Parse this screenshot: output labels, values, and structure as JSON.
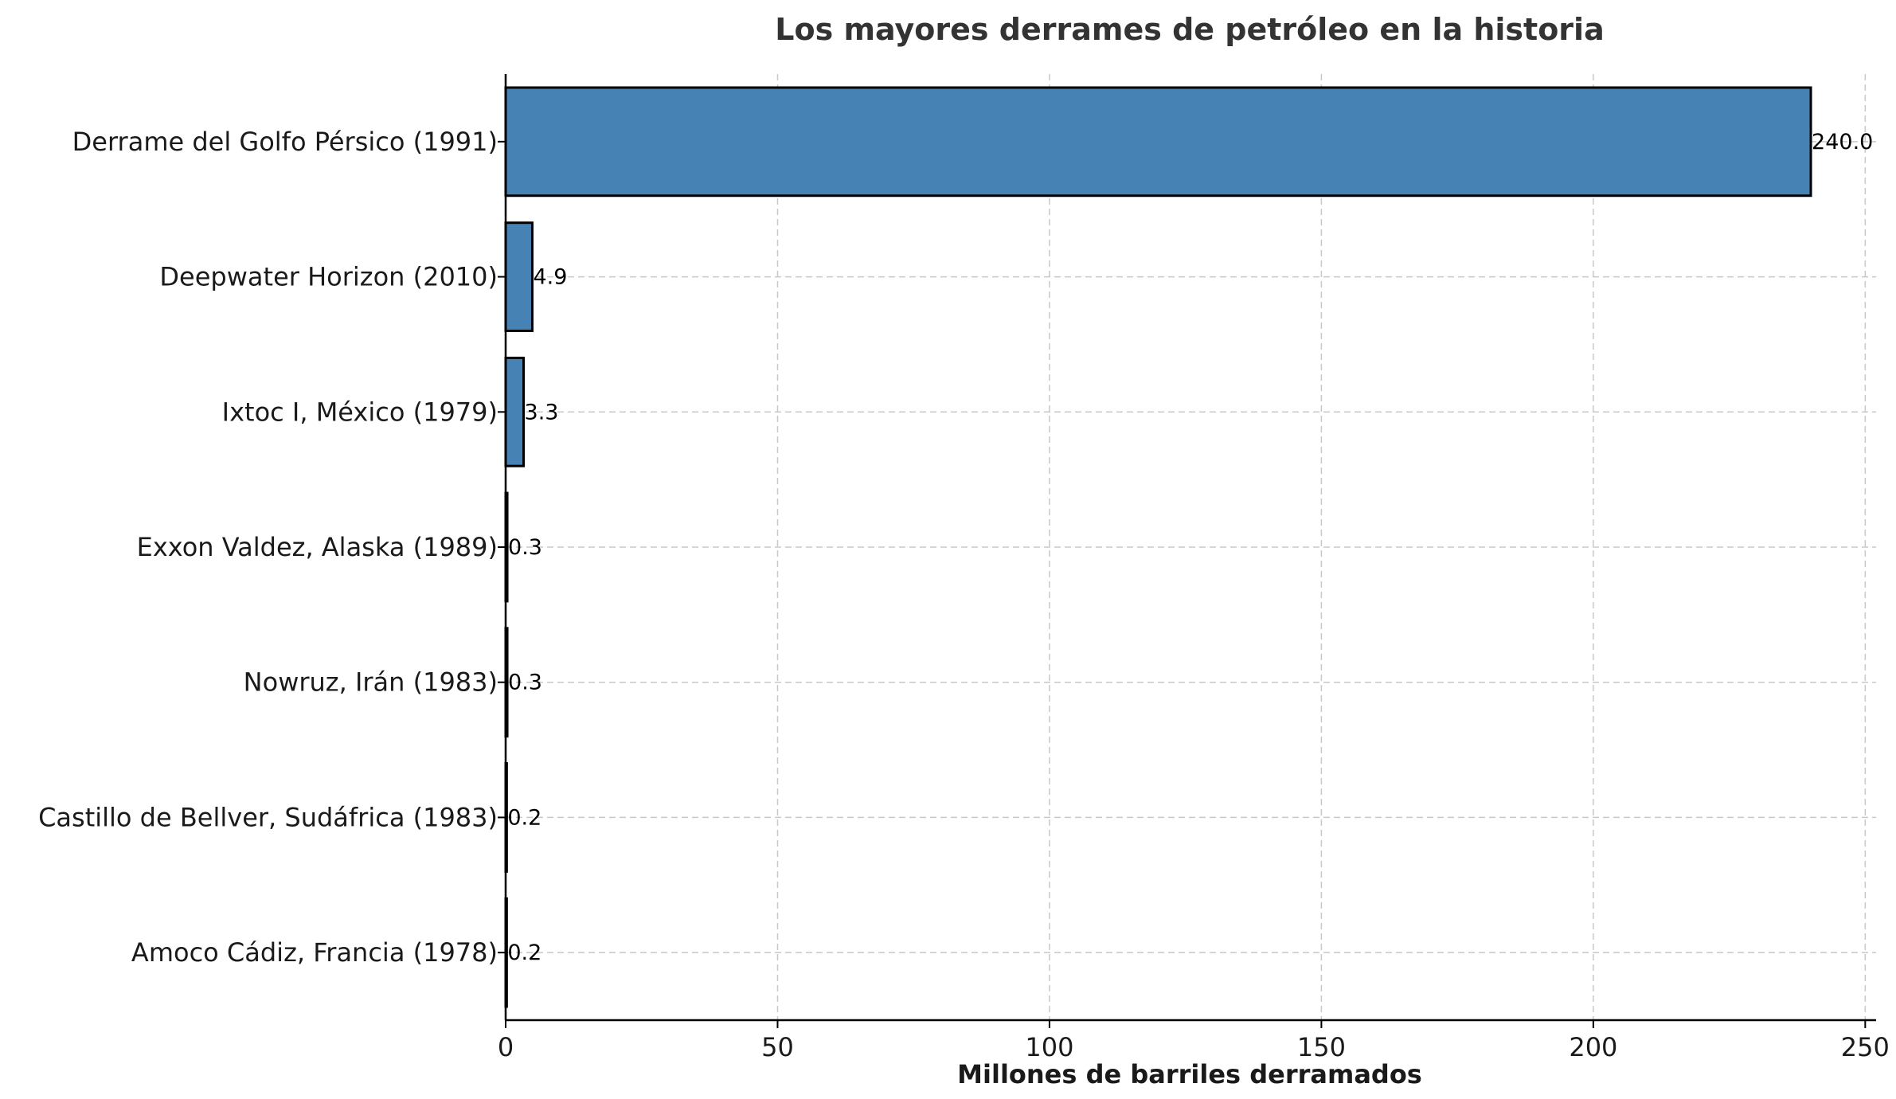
{
  "chart_data": {
    "type": "bar",
    "orientation": "horizontal",
    "title": "Los mayores derrames de petróleo en la historia",
    "xlabel": "Millones de barriles derramados",
    "ylabel": "",
    "categories": [
      "Derrame del Golfo Pérsico (1991)",
      "Deepwater Horizon (2010)",
      "Ixtoc I, México (1979)",
      "Exxon Valdez, Alaska (1989)",
      "Nowruz, Irán (1983)",
      "Castillo de Bellver, Sudáfrica (1983)",
      "Amoco Cádiz, Francia (1978)"
    ],
    "values": [
      240.0,
      4.9,
      3.3,
      0.3,
      0.3,
      0.2,
      0.2
    ],
    "value_labels": [
      "240.0",
      "4.9",
      "3.3",
      "0.3",
      "0.3",
      "0.2",
      "0.2"
    ],
    "xlim": [
      0,
      252
    ],
    "xticks": [
      0,
      50,
      100,
      150,
      200,
      250
    ],
    "grid": true,
    "bar_color": "#4682b4",
    "edge_color": "#000000"
  }
}
